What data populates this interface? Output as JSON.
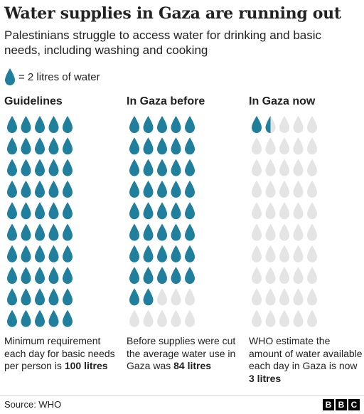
{
  "header": {
    "title": "Water supplies in Gaza are running out",
    "subtitle": "Palestinians struggle to access water for drinking and basic needs, including washing and cooking"
  },
  "legend": {
    "label": "= 2 litres of water",
    "icon": "water-drop-icon"
  },
  "colors": {
    "filled": "#1f7f9c",
    "empty": "#e4e4e4"
  },
  "chart_data": {
    "type": "pictogram",
    "unit_litres_per_drop": 2,
    "total_drops_per_column": 50,
    "columns": [
      {
        "title": "Guidelines",
        "value": 100,
        "note": "Minimum requirement each day for basic needs per person is",
        "value_label": "100 litres"
      },
      {
        "title": "In Gaza before",
        "value": 84,
        "note": "Before supplies were cut the average water use in Gaza was",
        "value_label": "84 litres"
      },
      {
        "title": "In Gaza now",
        "value": 3,
        "note": "WHO estimate the amount of water available each day in Gaza is now",
        "value_label": "3 litres"
      }
    ]
  },
  "footer": {
    "source": "Source: WHO",
    "logo": [
      "B",
      "B",
      "C"
    ]
  }
}
